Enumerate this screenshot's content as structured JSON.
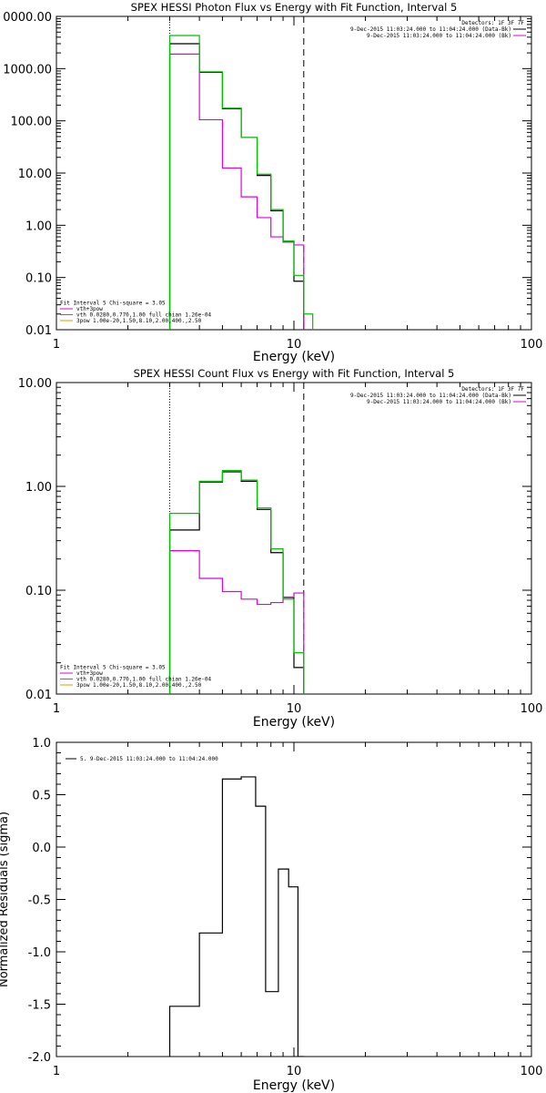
{
  "chart_data": [
    {
      "type": "line",
      "title": "SPEX HESSI Photon Flux vs Energy with Fit Function, Interval 5",
      "xlabel": "Energy (keV)",
      "ylabel": "",
      "xscale": "log",
      "yscale": "log",
      "xlim": [
        1,
        100
      ],
      "ylim": [
        0.01,
        10000
      ],
      "xtick_labels": [
        "1",
        "10",
        "100"
      ],
      "ytick_labels": [
        "0000.00",
        "1000.00",
        "100.00",
        "10.00",
        "1.00",
        "0.10",
        "0.01"
      ],
      "grid": false,
      "legend_top": [
        "Detectors: 1F 3F 7F",
        "9-Dec-2015 11:03:24.000 to 11:04:24.000 (Data-Bk)",
        "9-Dec-2015 11:03:24.000 to 11:04:24.000 (Bk)"
      ],
      "legend_bottom": [
        "Fit Interval 5   Chi-square = 3.05",
        "vth+3pow",
        "vth 0.0280,0.770,1.00  full chian 1.26e-04",
        "3pow 1.00e-20,1.50,8.10,2.00,400.,2.50"
      ],
      "vlines": [
        {
          "x": 3.0,
          "style": "dotted"
        },
        {
          "x": 11.0,
          "style": "dashed"
        }
      ],
      "bin_edges": [
        3.0,
        4.0,
        5.0,
        6.0,
        7.0,
        8.0,
        9.0,
        10.0,
        11.0,
        12.0
      ],
      "series": [
        {
          "values": [
            3000,
            850,
            170,
            48,
            9.0,
            1.9,
            0.48,
            0.085,
            null
          ],
          "color": "#000000"
        },
        {
          "values": [
            1900,
            105,
            12.5,
            3.5,
            1.4,
            0.6,
            0.48,
            0.42,
            null
          ],
          "color": "#e000e0"
        },
        {
          "values": [
            4300,
            870,
            175,
            48,
            9.5,
            2.0,
            0.5,
            0.11,
            0.02
          ],
          "color": "#00c000"
        }
      ]
    },
    {
      "type": "line",
      "title": "SPEX HESSI Count Flux vs Energy with Fit Function, Interval 5",
      "xlabel": "Energy (keV)",
      "ylabel": "",
      "xscale": "log",
      "yscale": "log",
      "xlim": [
        1,
        100
      ],
      "ylim": [
        0.01,
        10
      ],
      "xtick_labels": [
        "1",
        "10",
        "100"
      ],
      "ytick_labels": [
        "10.00",
        "1.00",
        "0.10",
        "0.01"
      ],
      "grid": false,
      "legend_top": [
        "Detectors: 1F 3F 7F",
        "9-Dec-2015 11:03:24.000 to 11:04:24.000 (Data-Bk)",
        "9-Dec-2015 11:03:24.000 to 11:04:24.000 (Bk)"
      ],
      "legend_bottom": [
        "Fit Interval 5   Chi-square = 3.05",
        "vth+3pow",
        "vth 0.0280,0.770,1.00  full chian 1.26e-04",
        "3pow 1.00e-20,1.50,8.10,2.00,400.,2.50"
      ],
      "vlines": [
        {
          "x": 3.0,
          "style": "dotted"
        },
        {
          "x": 11.0,
          "style": "dashed"
        }
      ],
      "bin_edges": [
        3.0,
        4.0,
        5.0,
        6.0,
        7.0,
        8.0,
        9.0,
        10.0,
        11.0
      ],
      "series": [
        {
          "values": [
            0.38,
            1.1,
            1.38,
            1.12,
            0.6,
            0.23,
            0.085,
            0.018
          ],
          "color": "#000000"
        },
        {
          "values": [
            0.24,
            0.13,
            0.097,
            0.082,
            0.073,
            0.076,
            0.086,
            0.094
          ],
          "color": "#e000e0"
        },
        {
          "values": [
            0.55,
            1.12,
            1.42,
            1.15,
            0.62,
            0.25,
            0.082,
            0.025
          ],
          "color": "#00c000"
        }
      ]
    },
    {
      "type": "line",
      "title": "",
      "xlabel": "Energy (keV)",
      "ylabel": "Normalized Residuals (sigma)",
      "xscale": "log",
      "yscale": "linear",
      "xlim": [
        1,
        100
      ],
      "ylim": [
        -2.0,
        1.0
      ],
      "xtick_labels": [
        "1",
        "10",
        "100"
      ],
      "ytick_labels": [
        "1.0",
        "0.5",
        "0.0",
        "-0.5",
        "-1.0",
        "-1.5",
        "-2.0"
      ],
      "grid": false,
      "legend_top": [
        "5. 9-Dec-2015 11:03:24.000 to 11:04:24.000"
      ],
      "bin_edges": [
        3.0,
        4.0,
        5.0,
        5.4,
        6.0,
        6.9,
        7.6,
        8.6,
        9.5,
        10.4,
        11.0
      ],
      "series": [
        {
          "values": [
            -1.52,
            -0.82,
            0.65,
            0.65,
            0.67,
            0.39,
            -1.38,
            -0.21,
            -0.38,
            -2.0
          ],
          "color": "#000000"
        }
      ]
    }
  ]
}
